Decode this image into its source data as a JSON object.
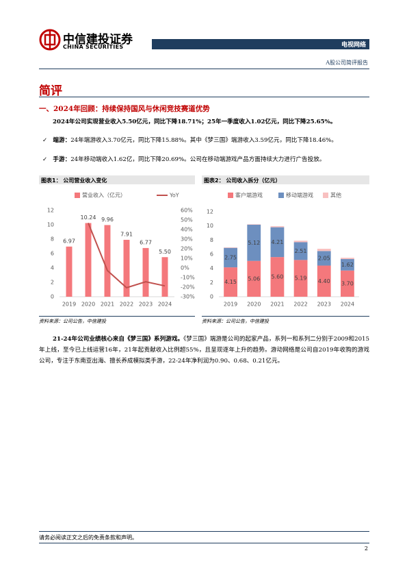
{
  "header": {
    "logo": "中信建投证券",
    "logo_en": "CHINA SECURITIES",
    "category": "电视网络",
    "report_type": "A股公司简评报告"
  },
  "section": "简评",
  "heading": "一、2024年回顾：持续保持国风与休闲竞技赛道优势",
  "summary": "2024年公司实现营业收入5.50亿元，同比下降18.71%；25年一季度收入1.02亿元，同比下降25.65%。",
  "bullets": [
    {
      "label": "端游：",
      "text": "24年端游收入3.70亿元，同比下降15.88%。其中《梦三国》端游收入3.59亿元，同比下降18.46%。"
    },
    {
      "label": "手游：",
      "text": "24年移动端收入1.62亿，同比下降20.69%。公司在移动端游戏产品方面持续大力进行广告投放。"
    }
  ],
  "chart_data": [
    {
      "type": "bar",
      "title": "图表1：  公司营业收入变化",
      "source": "资料来源：公司公告，中信建投",
      "categories": [
        "2019",
        "2020",
        "2021",
        "2022",
        "2023",
        "2024"
      ],
      "series": [
        {
          "name": "营业收入（亿元）",
          "color": "#f4787c",
          "values": [
            6.97,
            10.24,
            9.96,
            7.91,
            6.77,
            5.5
          ],
          "value_labels": [
            "6.97",
            "10.24",
            "9.96",
            "7.91",
            "6.77",
            "5.50"
          ]
        },
        {
          "name": "YoY",
          "type": "line",
          "axis": "y2",
          "color": "#c0504d",
          "values": [
            null,
            46.9,
            -2.7,
            -20.6,
            -14.4,
            -18.7
          ]
        }
      ],
      "ylim": [
        0,
        12
      ],
      "yticks": [
        0,
        2,
        4,
        6,
        8,
        10,
        12
      ],
      "y2lim": [
        -30,
        60
      ],
      "y2ticks": [
        {
          "value": -30,
          "label": "-30%"
        },
        {
          "value": -20,
          "label": "-20%"
        },
        {
          "value": -10,
          "label": "-10%"
        },
        {
          "value": 0,
          "label": "0%"
        },
        {
          "value": 10,
          "label": "10%"
        },
        {
          "value": 20,
          "label": "20%"
        },
        {
          "value": 30,
          "label": "30%"
        },
        {
          "value": 40,
          "label": "40%"
        },
        {
          "value": 50,
          "label": "50%"
        },
        {
          "value": 60,
          "label": "60%"
        }
      ],
      "grid": false
    },
    {
      "type": "stacked_bar",
      "title": "图表2：  公司收入拆分（亿元）",
      "source": "资料来源：公司公告，中信建投",
      "categories": [
        "2019",
        "2020",
        "2021",
        "2022",
        "2023",
        "2024"
      ],
      "series": [
        {
          "name": "客户端游戏",
          "color": "#f4787c",
          "values": [
            4.15,
            5.06,
            5.6,
            5.19,
            4.4,
            3.7
          ],
          "value_labels": [
            "4.15",
            "5.06",
            "5.60",
            "5.19",
            "4.40",
            "3.70"
          ]
        },
        {
          "name": "移动端游戏",
          "color": "#6d8fbf",
          "values": [
            2.75,
            5.12,
            4.21,
            2.51,
            2.05,
            1.62
          ],
          "value_labels": [
            "2.75",
            "5.12",
            "4.21",
            "2.51",
            "2.05",
            "1.62"
          ]
        },
        {
          "name": "其他",
          "color": "#f8c0c0",
          "values": [
            0.07,
            0.06,
            0.15,
            0.21,
            0.32,
            0.18
          ]
        }
      ],
      "ylim": [
        0,
        12
      ],
      "yticks": [
        0,
        2,
        4,
        6,
        8,
        10,
        12
      ],
      "grid": false
    }
  ],
  "paragraph": {
    "lead": "21-24年公司业绩核心来自《梦三国》系列游戏。",
    "text": "《梦三国》端游是公司的起家产品，系列一和系列二分别于2009和2015年上线，至今已上线运营16年，21年起贡献收入比例超55%，且呈现逐年上升的趋势。游动网络是公司自2019年收购的游戏公司，专注于东南亚出海、擅长养成模拟类手游，22-24年净利润为0.90、0.68、0.21亿元。"
  },
  "footer": {
    "disclaimer": "请务必阅读正文之后的免责条款和声明。",
    "page": "2"
  }
}
